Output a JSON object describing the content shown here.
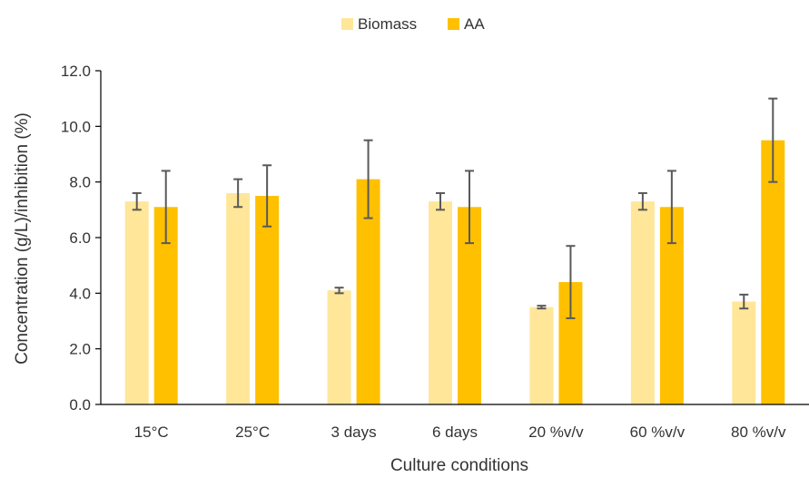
{
  "chart_data": {
    "type": "bar",
    "categories": [
      "15°C",
      "25°C",
      "3 days",
      "6 days",
      "20 %v/v",
      "60 %v/v",
      "80 %v/v"
    ],
    "series": [
      {
        "name": "Biomass",
        "values": [
          7.3,
          7.6,
          4.1,
          7.3,
          3.5,
          7.3,
          3.7
        ],
        "errors": [
          0.3,
          0.5,
          0.1,
          0.3,
          0.05,
          0.3,
          0.25
        ],
        "color": "#FFE699"
      },
      {
        "name": "AA",
        "values": [
          7.1,
          7.5,
          8.1,
          7.1,
          4.4,
          7.1,
          9.5
        ],
        "errors": [
          1.3,
          1.1,
          1.4,
          1.3,
          1.3,
          1.3,
          1.5
        ],
        "color": "#FFC000"
      }
    ],
    "ylim": [
      0,
      12
    ],
    "yticks": [
      "0.0",
      "2.0",
      "4.0",
      "6.0",
      "8.0",
      "10.0",
      "12.0"
    ],
    "xlabel": "Culture conditions",
    "ylabel": "Concentration (g/L)/inhibition (%)",
    "legend_position": "top-center",
    "grid": false,
    "error_bar_color": "#595959"
  }
}
